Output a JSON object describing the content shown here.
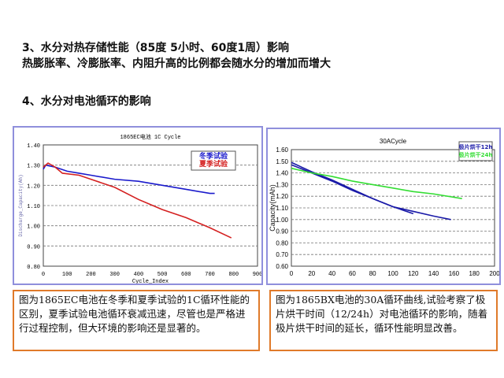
{
  "slide": {
    "heading3": "3、水分对热存储性能（85度 5小时、60度1周）影响",
    "line3": "热膨胀率、冷膨胀率、内阻升高的比例都会随水分的增加而增大",
    "heading4": "4、水分对电池循环的影响"
  },
  "chart_data": [
    {
      "type": "line",
      "title": "1865EC电池 1C Cycle",
      "xlabel": "Cycle_Index",
      "ylabel": "Discharge_Capacity(Ah)",
      "xlim": [
        0,
        900
      ],
      "ylim": [
        0.8,
        1.4
      ],
      "xticks": [
        "0",
        "100",
        "200",
        "300",
        "400",
        "500",
        "600",
        "700",
        "800",
        "900"
      ],
      "yticks": [
        "0.80",
        "0.90",
        "1.00",
        "1.10",
        "1.20",
        "1.30",
        "1.40"
      ],
      "grid": "horizontal dashed",
      "legend_position": "top-right",
      "series": [
        {
          "name": "冬季试验",
          "color": "#1a1acc",
          "x": [
            0,
            10,
            50,
            100,
            150,
            200,
            300,
            400,
            500,
            600,
            700,
            720
          ],
          "y": [
            1.28,
            1.3,
            1.29,
            1.27,
            1.26,
            1.25,
            1.23,
            1.22,
            1.2,
            1.18,
            1.16,
            1.16
          ]
        },
        {
          "name": "夏季试验",
          "color": "#d42020",
          "x": [
            0,
            20,
            50,
            80,
            150,
            200,
            300,
            400,
            500,
            600,
            700,
            790
          ],
          "y": [
            1.29,
            1.31,
            1.29,
            1.26,
            1.25,
            1.23,
            1.19,
            1.13,
            1.08,
            1.04,
            0.99,
            0.94
          ]
        }
      ]
    },
    {
      "type": "line",
      "title": "30ACycle",
      "xlabel": "",
      "ylabel": "Capacity(mAh)",
      "xlim": [
        0,
        200
      ],
      "ylim": [
        0.6,
        1.6
      ],
      "xticks": [
        "0",
        "20",
        "40",
        "60",
        "80",
        "100",
        "120",
        "140",
        "160",
        "180",
        "200"
      ],
      "yticks": [
        "0.60",
        "0.70",
        "0.80",
        "0.90",
        "1.00",
        "1.10",
        "1.20",
        "1.30",
        "1.40",
        "1.50",
        "1.60"
      ],
      "grid": "horizontal dashed",
      "legend_position": "top-right",
      "series": [
        {
          "name": "极片烘干12h",
          "color": "#1a1aa8",
          "x": [
            0,
            20,
            40,
            60,
            80,
            100,
            120,
            140,
            157
          ],
          "y": [
            1.47,
            1.4,
            1.33,
            1.25,
            1.18,
            1.11,
            1.07,
            1.03,
            1.0
          ]
        },
        {
          "name": "",
          "color": "#1a1aa8",
          "x": [
            0,
            20,
            40,
            60,
            80,
            100,
            120
          ],
          "y": [
            1.49,
            1.41,
            1.34,
            1.26,
            1.18,
            1.11,
            1.05
          ]
        },
        {
          "name": "极片烘干24h",
          "color": "#33dd33",
          "x": [
            0,
            20,
            40,
            60,
            80,
            100,
            120,
            140,
            168
          ],
          "y": [
            1.44,
            1.4,
            1.37,
            1.33,
            1.3,
            1.27,
            1.24,
            1.22,
            1.18
          ]
        }
      ]
    }
  ],
  "notes": [
    "图为1865EC电池在冬季和夏季试验的1C循环性能的区别，夏季试验电池循环衰减迅速，尽管也是严格进行过程控制，但大环境的影响还是显著的。",
    "图为1865BX电池的30A循环曲线,试验考察了极片烘干时间（12/24h）对电池循环的影响，随着极片烘干时间的延长，循环性能明显改善。"
  ]
}
